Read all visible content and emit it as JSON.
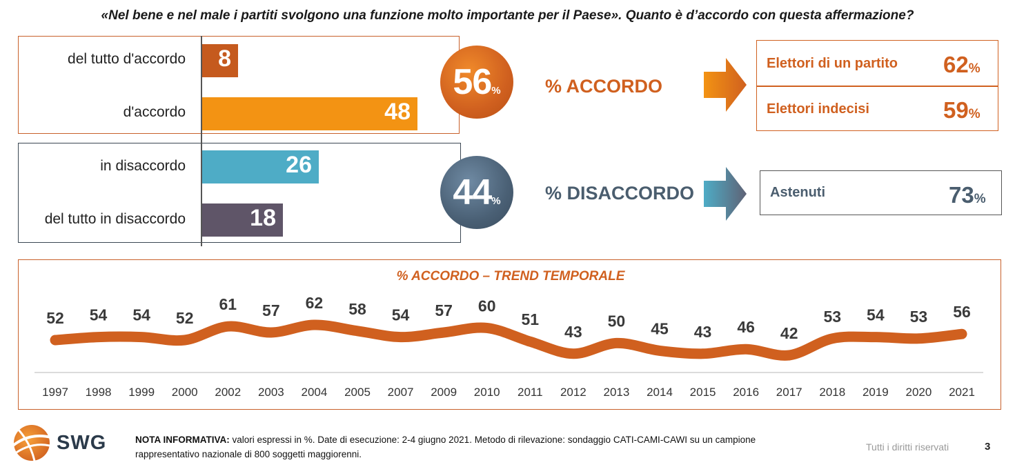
{
  "question": "«Nel bene e nel male i partiti svolgono una funzione molto importante per il Paese». Quanto è d’accordo con questa affermazione?",
  "bars": [
    {
      "label": "del tutto d'accordo",
      "value": 8,
      "color": "#c55a1e"
    },
    {
      "label": "d'accordo",
      "value": 48,
      "color": "#f39313"
    },
    {
      "label": "in disaccordo",
      "value": 26,
      "color": "#4eacc6"
    },
    {
      "label": "del tutto in disaccordo",
      "value": 18,
      "color": "#5f5568"
    }
  ],
  "agree": {
    "value": "56",
    "pct": "%",
    "label": "% ACCORDO",
    "color": "#d0601f"
  },
  "disagree": {
    "value": "44",
    "pct": "%",
    "label": "% DISACCORDO",
    "color": "#4a5d6e"
  },
  "agree_results": [
    {
      "label": "Elettori di un partito",
      "value": "62",
      "pct": "%"
    },
    {
      "label": "Elettori indecisi",
      "value": "59",
      "pct": "%"
    }
  ],
  "disagree_result": {
    "label": "Astenuti",
    "value": "73",
    "pct": "%"
  },
  "trend": {
    "title": "% ACCORDO – TREND TEMPORALE"
  },
  "chart_data": [
    {
      "type": "bar",
      "categories": [
        "del tutto d'accordo",
        "d'accordo",
        "in disaccordo",
        "del tutto in disaccordo"
      ],
      "values": [
        8,
        48,
        26,
        18
      ]
    },
    {
      "type": "line",
      "title": "% ACCORDO – TREND TEMPORALE",
      "x": [
        "1997",
        "1998",
        "1999",
        "2000",
        "2002",
        "2003",
        "2004",
        "2005",
        "2007",
        "2009",
        "2010",
        "2011",
        "2012",
        "2013",
        "2014",
        "2015",
        "2016",
        "2017",
        "2018",
        "2019",
        "2020",
        "2021"
      ],
      "values": [
        52,
        54,
        54,
        52,
        61,
        57,
        62,
        58,
        54,
        57,
        60,
        51,
        43,
        50,
        45,
        43,
        46,
        42,
        53,
        54,
        53,
        56
      ]
    }
  ],
  "footer": {
    "note_bold": "NOTA INFORMATIVA:",
    "note_text": " valori espressi in %. Date di esecuzione: 2-4 giugno 2021. Metodo di rilevazione: sondaggio CATI-CAMI-CAWI su un campione rappresentativo nazionale di 800 soggetti maggiorenni.",
    "rights": "Tutti i diritti riservati",
    "page": "3",
    "logo": "SWG"
  }
}
